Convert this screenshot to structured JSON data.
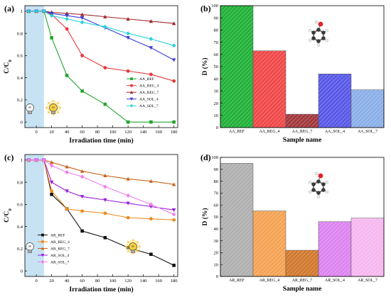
{
  "chart_data": [
    {
      "panel": "(a)",
      "type": "line",
      "xlabel": "Irradiation time (min)",
      "ylabel": "C/C0",
      "xticks": [
        0,
        20,
        40,
        60,
        80,
        100,
        120,
        140,
        160,
        180
      ],
      "yticks": [
        0.0,
        0.2,
        0.4,
        0.6,
        0.8,
        1.0
      ],
      "xlim": [
        -15,
        185
      ],
      "ylim": [
        -0.05,
        1.05
      ],
      "dark_region": [
        -15,
        10
      ],
      "legend_position": "right",
      "series": [
        {
          "name": "AA_REF",
          "color": "#23a52f",
          "marker": "square",
          "x": [
            -10,
            0,
            10,
            20,
            40,
            60,
            90,
            120,
            150,
            180
          ],
          "y": [
            1.0,
            1.0,
            1.0,
            0.76,
            0.42,
            0.28,
            0.16,
            0.0,
            0.0,
            0.0
          ]
        },
        {
          "name": "AA_REG_4",
          "color": "#e8383b",
          "marker": "circle",
          "x": [
            -10,
            0,
            10,
            20,
            40,
            60,
            90,
            120,
            150,
            180
          ],
          "y": [
            1.0,
            1.0,
            1.0,
            0.97,
            0.84,
            0.6,
            0.49,
            0.46,
            0.43,
            0.37
          ]
        },
        {
          "name": "AA_REG_7",
          "color": "#a0282d",
          "marker": "triangle-up",
          "x": [
            -10,
            0,
            10,
            20,
            40,
            60,
            90,
            120,
            150,
            180
          ],
          "y": [
            1.0,
            1.0,
            1.0,
            0.99,
            0.98,
            0.97,
            0.95,
            0.93,
            0.91,
            0.89
          ]
        },
        {
          "name": "AA_SOL_4",
          "color": "#3b3bd9",
          "marker": "triangle-down",
          "x": [
            -10,
            0,
            10,
            20,
            40,
            60,
            90,
            120,
            150,
            180
          ],
          "y": [
            1.0,
            1.0,
            1.0,
            0.98,
            0.96,
            0.94,
            0.85,
            0.76,
            0.67,
            0.56
          ]
        },
        {
          "name": "AA_SOL_7",
          "color": "#26d4d9",
          "marker": "diamond",
          "x": [
            -10,
            0,
            10,
            20,
            40,
            60,
            90,
            120,
            150,
            180
          ],
          "y": [
            1.0,
            1.0,
            1.0,
            0.96,
            0.93,
            0.9,
            0.86,
            0.8,
            0.75,
            0.69
          ]
        }
      ]
    },
    {
      "panel": "(b)",
      "type": "bar",
      "xlabel": "Sample name",
      "ylabel": "D (%)",
      "yticks": [
        0,
        10,
        20,
        30,
        40,
        50,
        60,
        70,
        80,
        90,
        100
      ],
      "ylim": [
        0,
        100
      ],
      "categories": [
        "AA_REF",
        "AA_REG_4",
        "AA_REG_7",
        "AA_SOL_4",
        "AA_SOL_7"
      ],
      "values": [
        100,
        63,
        11,
        44,
        31
      ],
      "colors": [
        "#23b23a",
        "#f04a4a",
        "#a33a3e",
        "#5a5ae8",
        "#8cb0e8"
      ]
    },
    {
      "panel": "(c)",
      "type": "line",
      "xlabel": "Irradiation time (min)",
      "ylabel": "C/C0",
      "xticks": [
        0,
        20,
        40,
        60,
        80,
        100,
        120,
        140,
        160,
        180
      ],
      "yticks": [
        0.0,
        0.2,
        0.4,
        0.6,
        0.8,
        1.0
      ],
      "xlim": [
        -15,
        185
      ],
      "ylim": [
        -0.05,
        1.05
      ],
      "dark_region": [
        -15,
        10
      ],
      "legend_position": "bottom-left",
      "series": [
        {
          "name": "AR_REF",
          "color": "#111111",
          "marker": "square",
          "x": [
            -10,
            0,
            10,
            20,
            40,
            60,
            90,
            120,
            150,
            180
          ],
          "y": [
            1.0,
            1.0,
            1.0,
            0.69,
            0.56,
            0.36,
            0.3,
            0.21,
            0.15,
            0.05
          ]
        },
        {
          "name": "AR_REG_4",
          "color": "#f08a1c",
          "marker": "circle",
          "x": [
            -10,
            0,
            10,
            20,
            40,
            60,
            90,
            120,
            150,
            180
          ],
          "y": [
            1.0,
            1.0,
            1.0,
            0.72,
            0.56,
            0.54,
            0.52,
            0.48,
            0.47,
            0.46
          ]
        },
        {
          "name": "AR_REG_7",
          "color": "#c8651e",
          "marker": "triangle-up",
          "x": [
            -10,
            0,
            10,
            20,
            40,
            60,
            90,
            120,
            150,
            180
          ],
          "y": [
            1.0,
            1.0,
            1.0,
            0.98,
            0.94,
            0.9,
            0.86,
            0.83,
            0.81,
            0.78
          ]
        },
        {
          "name": "AR_SOL_4",
          "color": "#9b1fe0",
          "marker": "triangle-down",
          "x": [
            -10,
            0,
            10,
            20,
            40,
            60,
            90,
            120,
            150,
            180
          ],
          "y": [
            1.0,
            1.0,
            1.0,
            0.8,
            0.72,
            0.67,
            0.64,
            0.61,
            0.58,
            0.55
          ]
        },
        {
          "name": "AR_SOL_7",
          "color": "#f07ef0",
          "marker": "diamond",
          "x": [
            -10,
            0,
            10,
            20,
            40,
            60,
            90,
            120,
            150,
            180
          ],
          "y": [
            1.0,
            1.0,
            1.0,
            0.95,
            0.89,
            0.85,
            0.76,
            0.68,
            0.6,
            0.51
          ]
        }
      ]
    },
    {
      "panel": "(d)",
      "type": "bar",
      "xlabel": "Sample name",
      "ylabel": "D (%)",
      "yticks": [
        0,
        10,
        20,
        30,
        40,
        50,
        60,
        70,
        80,
        90,
        100
      ],
      "ylim": [
        0,
        100
      ],
      "categories": [
        "AR_REF",
        "AR_REG_4",
        "AR_REG_7",
        "AR_SOL_4",
        "AR_SOL_7"
      ],
      "values": [
        95,
        55,
        22,
        46,
        49
      ],
      "colors": [
        "#b0b0b0",
        "#f5a455",
        "#d27a30",
        "#dd85f0",
        "#f7b8f0"
      ]
    }
  ]
}
